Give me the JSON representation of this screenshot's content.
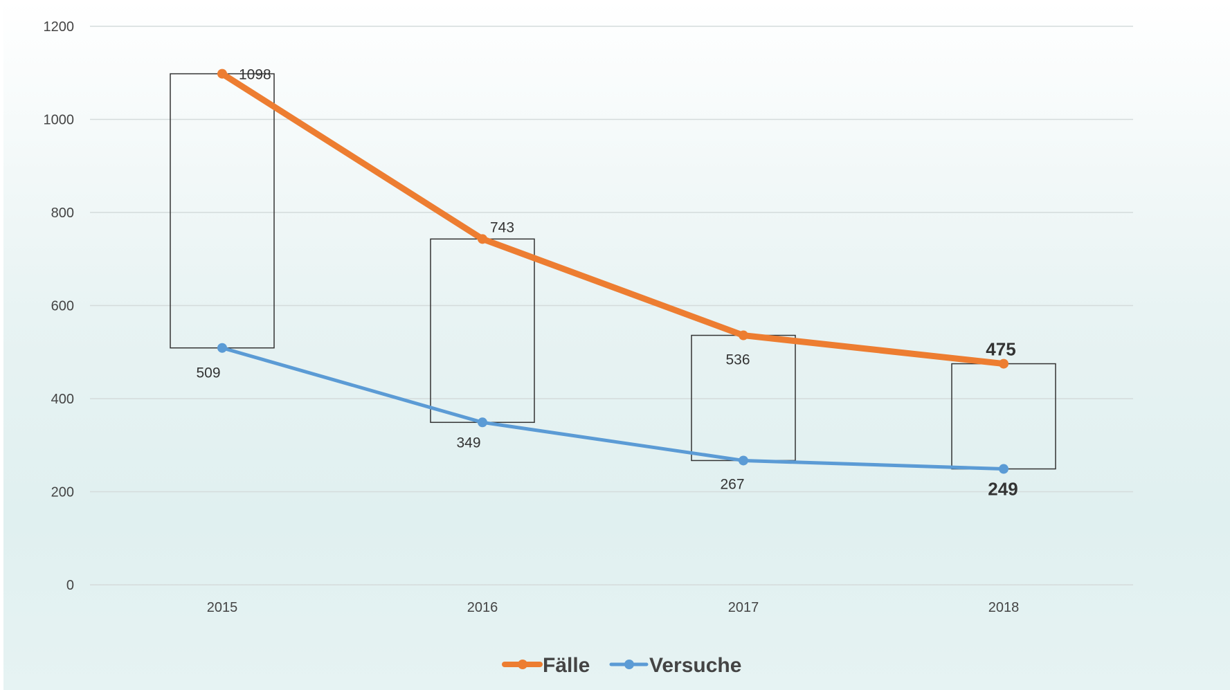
{
  "chart_data": {
    "type": "line",
    "categories": [
      "2015",
      "2016",
      "2017",
      "2018"
    ],
    "series": [
      {
        "name": "Fälle",
        "values": [
          1098,
          743,
          536,
          475
        ],
        "color": "#ed7d31"
      },
      {
        "name": "Versuche",
        "values": [
          509,
          349,
          267,
          249
        ],
        "color": "#5b9bd5"
      }
    ],
    "ylim": [
      0,
      1200
    ],
    "yticks": [
      "0",
      "200",
      "400",
      "600",
      "800",
      "1000",
      "1200"
    ],
    "grid": true,
    "legend_position": "bottom",
    "range_boxes": true,
    "highlight_colors": {
      "falle_last": "#00b050",
      "versuche_last": "#333333"
    },
    "title": "",
    "xlabel": "",
    "ylabel": ""
  }
}
